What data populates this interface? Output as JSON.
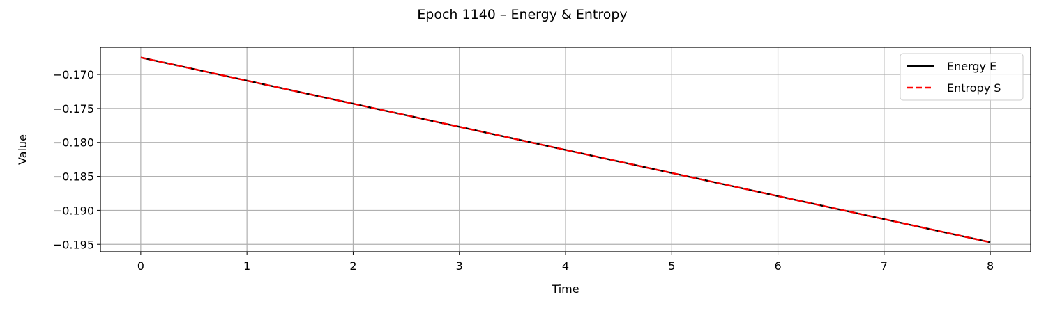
{
  "chart_data": {
    "type": "line",
    "title": "Epoch 1140 – Energy & Entropy",
    "xlabel": "Time",
    "ylabel": "Value",
    "xlim": [
      -0.38,
      8.38
    ],
    "ylim": [
      -0.1961,
      -0.166
    ],
    "xticks": [
      0,
      1,
      2,
      3,
      4,
      5,
      6,
      7,
      8
    ],
    "xtick_labels": [
      "0",
      "1",
      "2",
      "3",
      "4",
      "5",
      "6",
      "7",
      "8"
    ],
    "yticks": [
      -0.17,
      -0.175,
      -0.18,
      -0.185,
      -0.19,
      -0.195
    ],
    "ytick_labels": [
      "−0.170",
      "−0.175",
      "−0.180",
      "−0.185",
      "−0.190",
      "−0.195"
    ],
    "grid": true,
    "legend_position": "top-right",
    "series": [
      {
        "name": "Energy E",
        "color": "#000000",
        "style": "solid",
        "x": [
          0.0,
          8.0
        ],
        "values": [
          -0.1675,
          -0.1947
        ]
      },
      {
        "name": "Entropy S",
        "color": "#ff0000",
        "style": "dashed",
        "x": [
          0.0,
          8.0
        ],
        "values": [
          -0.1675,
          -0.1947
        ]
      }
    ]
  }
}
